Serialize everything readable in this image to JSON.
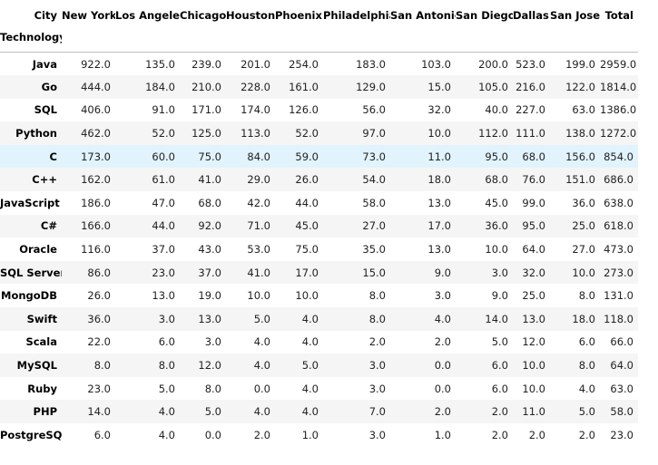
{
  "table": {
    "columns_name": "City",
    "index_name": "Technology",
    "columns": [
      "New York",
      "Los Angeles",
      "Chicago",
      "Houston",
      "Phoenix",
      "Philadelphia",
      "San Antonio",
      "San Diego",
      "Dallas",
      "San Jose",
      "Total"
    ],
    "rows": [
      {
        "label": "Java",
        "cells": [
          "922.0",
          "135.0",
          "239.0",
          "201.0",
          "254.0",
          "183.0",
          "103.0",
          "200.0",
          "523.0",
          "199.0",
          "2959.0"
        ]
      },
      {
        "label": "Go",
        "cells": [
          "444.0",
          "184.0",
          "210.0",
          "228.0",
          "161.0",
          "129.0",
          "15.0",
          "105.0",
          "216.0",
          "122.0",
          "1814.0"
        ]
      },
      {
        "label": "SQL",
        "cells": [
          "406.0",
          "91.0",
          "171.0",
          "174.0",
          "126.0",
          "56.0",
          "32.0",
          "40.0",
          "227.0",
          "63.0",
          "1386.0"
        ]
      },
      {
        "label": "Python",
        "cells": [
          "462.0",
          "52.0",
          "125.0",
          "113.0",
          "52.0",
          "97.0",
          "10.0",
          "112.0",
          "111.0",
          "138.0",
          "1272.0"
        ]
      },
      {
        "label": "C",
        "cells": [
          "173.0",
          "60.0",
          "75.0",
          "84.0",
          "59.0",
          "73.0",
          "11.0",
          "95.0",
          "68.0",
          "156.0",
          "854.0"
        ]
      },
      {
        "label": "C++",
        "cells": [
          "162.0",
          "61.0",
          "41.0",
          "29.0",
          "26.0",
          "54.0",
          "18.0",
          "68.0",
          "76.0",
          "151.0",
          "686.0"
        ]
      },
      {
        "label": "JavaScript",
        "cells": [
          "186.0",
          "47.0",
          "68.0",
          "42.0",
          "44.0",
          "58.0",
          "13.0",
          "45.0",
          "99.0",
          "36.0",
          "638.0"
        ]
      },
      {
        "label": "C#",
        "cells": [
          "166.0",
          "44.0",
          "92.0",
          "71.0",
          "45.0",
          "27.0",
          "17.0",
          "36.0",
          "95.0",
          "25.0",
          "618.0"
        ]
      },
      {
        "label": "Oracle",
        "cells": [
          "116.0",
          "37.0",
          "43.0",
          "53.0",
          "75.0",
          "35.0",
          "13.0",
          "10.0",
          "64.0",
          "27.0",
          "473.0"
        ]
      },
      {
        "label": "SQL Server",
        "cells": [
          "86.0",
          "23.0",
          "37.0",
          "41.0",
          "17.0",
          "15.0",
          "9.0",
          "3.0",
          "32.0",
          "10.0",
          "273.0"
        ]
      },
      {
        "label": "MongoDB",
        "cells": [
          "26.0",
          "13.0",
          "19.0",
          "10.0",
          "10.0",
          "8.0",
          "3.0",
          "9.0",
          "25.0",
          "8.0",
          "131.0"
        ]
      },
      {
        "label": "Swift",
        "cells": [
          "36.0",
          "3.0",
          "13.0",
          "5.0",
          "4.0",
          "8.0",
          "4.0",
          "14.0",
          "13.0",
          "18.0",
          "118.0"
        ]
      },
      {
        "label": "Scala",
        "cells": [
          "22.0",
          "6.0",
          "3.0",
          "4.0",
          "4.0",
          "2.0",
          "2.0",
          "5.0",
          "12.0",
          "6.0",
          "66.0"
        ]
      },
      {
        "label": "MySQL",
        "cells": [
          "8.0",
          "8.0",
          "12.0",
          "4.0",
          "5.0",
          "3.0",
          "0.0",
          "6.0",
          "10.0",
          "8.0",
          "64.0"
        ]
      },
      {
        "label": "Ruby",
        "cells": [
          "23.0",
          "5.0",
          "8.0",
          "0.0",
          "4.0",
          "3.0",
          "0.0",
          "6.0",
          "10.0",
          "4.0",
          "63.0"
        ]
      },
      {
        "label": "PHP",
        "cells": [
          "14.0",
          "4.0",
          "5.0",
          "4.0",
          "4.0",
          "7.0",
          "2.0",
          "2.0",
          "11.0",
          "5.0",
          "58.0"
        ]
      },
      {
        "label": "PostgreSQL",
        "cells": [
          "6.0",
          "4.0",
          "0.0",
          "2.0",
          "1.0",
          "3.0",
          "1.0",
          "2.0",
          "2.0",
          "2.0",
          "23.0"
        ]
      }
    ]
  }
}
